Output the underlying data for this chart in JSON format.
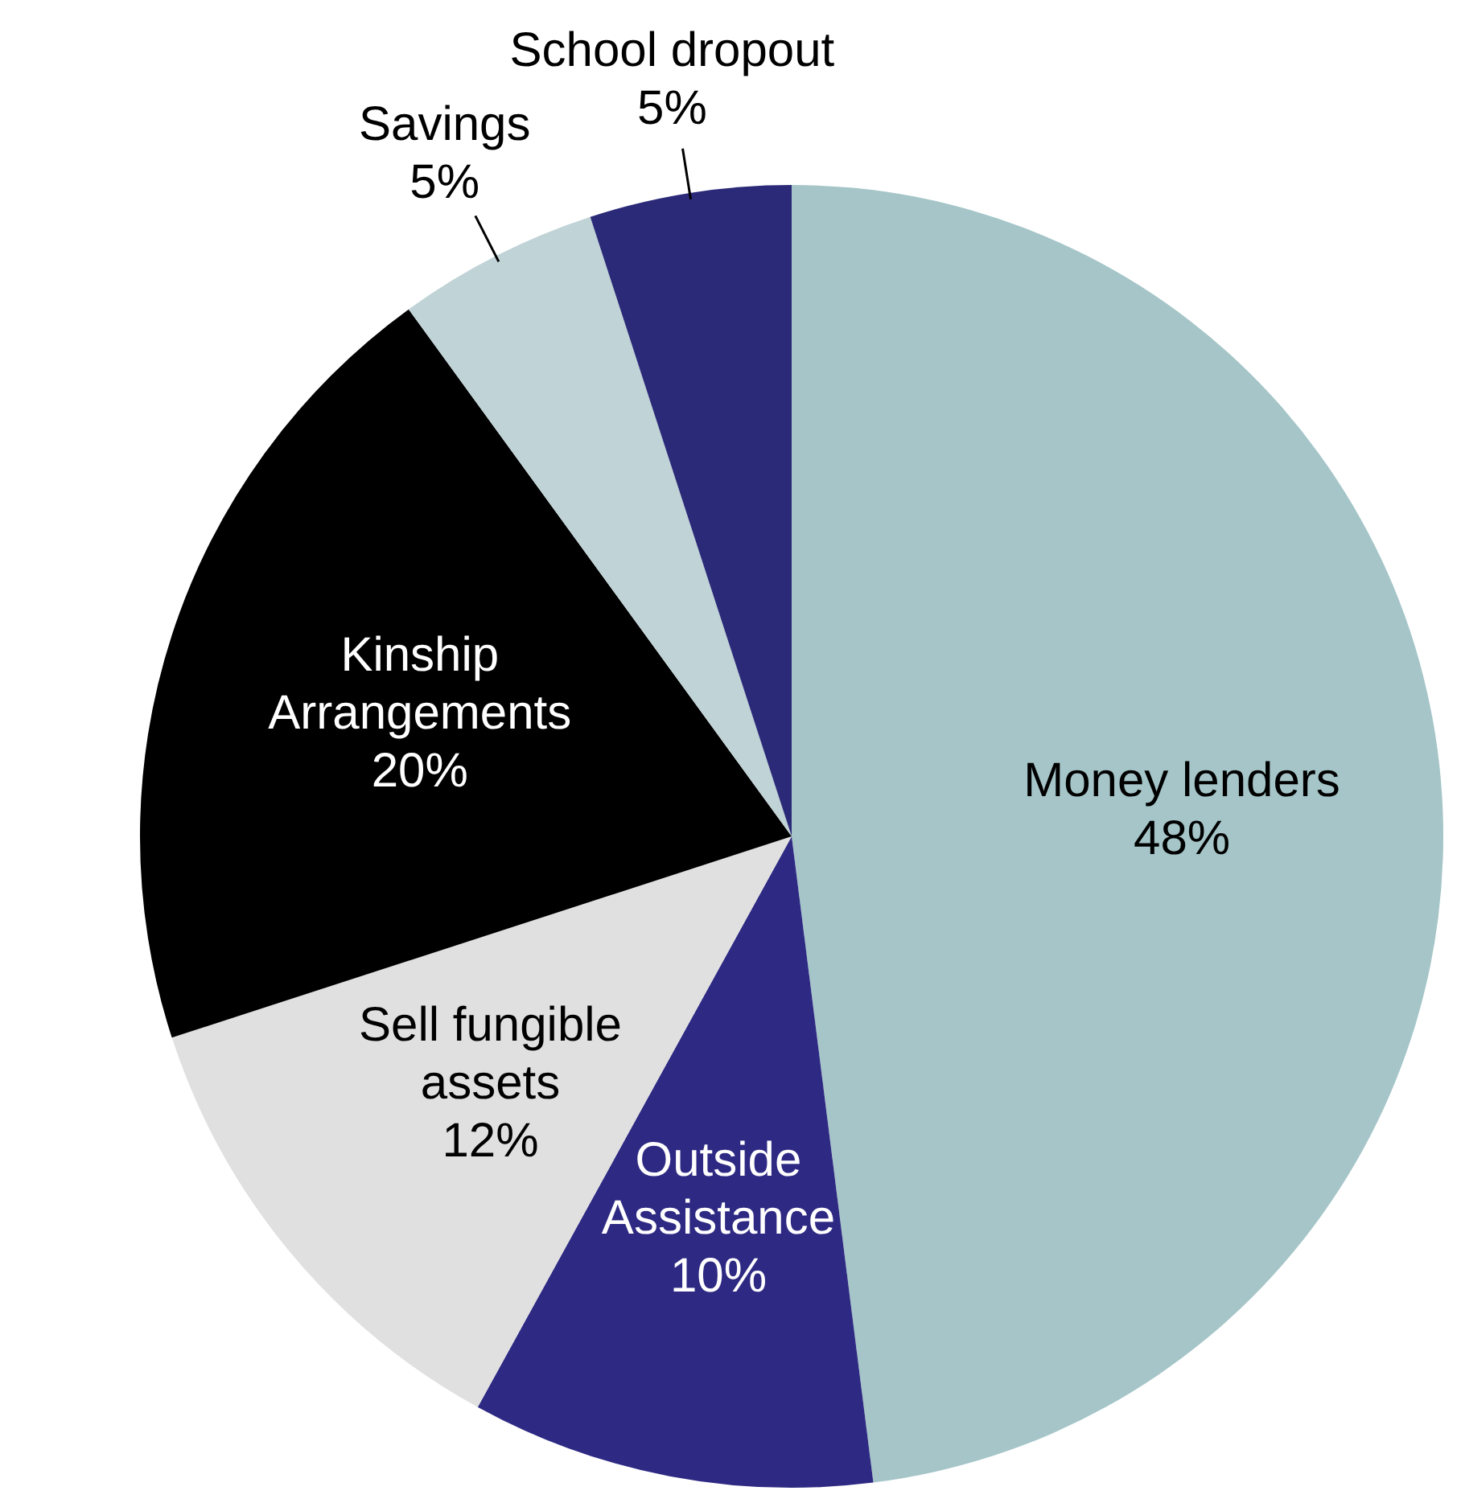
{
  "chart_data": {
    "type": "pie",
    "categories": [
      "Money lenders",
      "Outside Assistance",
      "Sell fungible assets",
      "Kinship Arrangements",
      "Savings",
      "School dropout"
    ],
    "values": [
      48,
      10,
      12,
      20,
      5,
      5
    ],
    "value_labels": [
      "48%",
      "10%",
      "12%",
      "20%",
      "5%",
      "5%"
    ],
    "colors": [
      "#a5c5c8",
      "#2e2a83",
      "#e0e0e0",
      "#000000",
      "#c0d3d6",
      "#2b2a78"
    ],
    "legend": false
  }
}
